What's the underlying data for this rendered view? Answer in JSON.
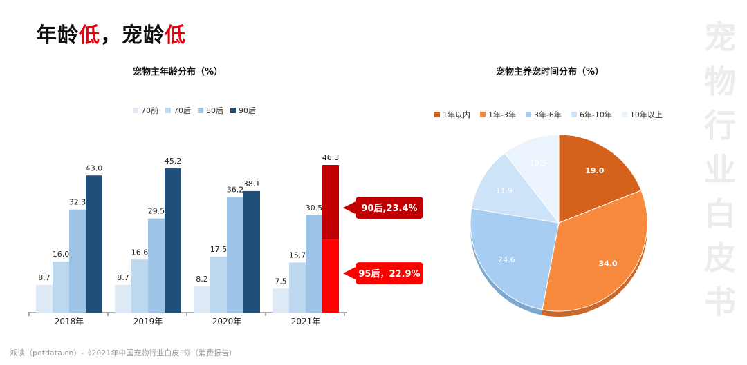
{
  "headline": {
    "part1": "年龄",
    "part2": "低",
    "part3": "，宠龄",
    "part4": "低"
  },
  "side_title": [
    "宠",
    "物",
    "行",
    "业",
    "白",
    "皮",
    "书"
  ],
  "source": "派读（petdata.cn）-《2021年中国宠物行业白皮书》（消费报告）",
  "chart_data": [
    {
      "type": "bar",
      "title": "宠物主年龄分布（%）",
      "legend_position": "top",
      "categories": [
        "2018年",
        "2019年",
        "2020年",
        "2021年"
      ],
      "series": [
        {
          "name": "70前",
          "color": "#deebf7",
          "values": [
            8.7,
            8.7,
            8.2,
            7.5
          ]
        },
        {
          "name": "70后",
          "color": "#bdd7ee",
          "values": [
            16.0,
            16.6,
            17.5,
            15.7
          ]
        },
        {
          "name": "80后",
          "color": "#9dc3e6",
          "values": [
            32.3,
            29.5,
            36.2,
            30.5
          ]
        },
        {
          "name": "90后",
          "color": "#1f4e79",
          "values": [
            43.0,
            45.2,
            38.1,
            46.3
          ]
        }
      ],
      "ylim": [
        0,
        46.3
      ],
      "grid": false,
      "breakdown_2021_90s": [
        {
          "label": "90后,23.4%",
          "value": 23.4,
          "color": "#c00000"
        },
        {
          "label": "95后，22.9%",
          "value": 22.9,
          "color": "#ff0000"
        }
      ]
    },
    {
      "type": "pie",
      "title": "宠物主养宠时间分布（%）",
      "legend_position": "top",
      "slices": [
        {
          "name": "1年以内",
          "value": 19.0,
          "color": "#d4621c"
        },
        {
          "name": "1年-3年",
          "value": 34.0,
          "color": "#f78a3c"
        },
        {
          "name": "3年-6年",
          "value": 24.6,
          "color": "#a8cdf2"
        },
        {
          "name": "6年-10年",
          "value": 11.9,
          "color": "#cde3f8"
        },
        {
          "name": "10年以上",
          "value": 10.5,
          "color": "#ebf4fc"
        }
      ]
    }
  ]
}
